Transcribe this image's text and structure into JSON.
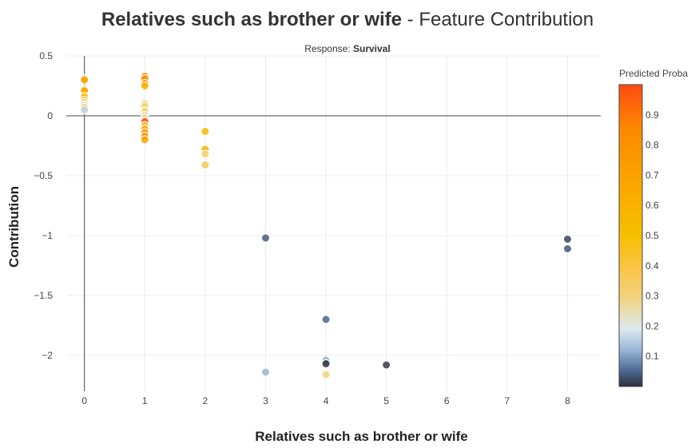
{
  "title": {
    "feature": "Relatives such as brother or wife",
    "separator": " - ",
    "suffix": "Feature Contribution"
  },
  "subtitle": {
    "prefix": "Response: ",
    "response": "Survival"
  },
  "chart_data": {
    "type": "scatter",
    "title": "Relatives such as brother or wife - Feature Contribution",
    "subtitle": "Response: Survival",
    "xlabel": "Relatives such as brother or wife",
    "ylabel": "Contribution",
    "xlim": [
      -0.3,
      8.55
    ],
    "ylim": [
      -2.3,
      0.5
    ],
    "xticks": [
      0,
      1,
      2,
      3,
      4,
      5,
      6,
      7,
      8
    ],
    "yticks": [
      0.5,
      0,
      -0.5,
      -1,
      -1.5,
      -2
    ],
    "ytick_labels": [
      "0.5",
      "0",
      "−0.5",
      "−1",
      "−1.5",
      "−2"
    ],
    "grid": true,
    "zero_line": true,
    "color_by": "Predicted Proba",
    "colorbar": {
      "title": "Predicted Proba",
      "range": [
        0,
        1
      ],
      "ticks": [
        0.1,
        0.2,
        0.3,
        0.4,
        0.5,
        0.6,
        0.7,
        0.8,
        0.9
      ],
      "stops": [
        {
          "v": 0.0,
          "color": "#2b2f38"
        },
        {
          "v": 0.05,
          "color": "#4a6591"
        },
        {
          "v": 0.12,
          "color": "#98b6d6"
        },
        {
          "v": 0.19,
          "color": "#dde9ee"
        },
        {
          "v": 0.3,
          "color": "#f2d27a"
        },
        {
          "v": 0.4,
          "color": "#fbc441"
        },
        {
          "v": 0.5,
          "color": "#f5c000"
        },
        {
          "v": 0.65,
          "color": "#fba900"
        },
        {
          "v": 0.85,
          "color": "#fd8a00"
        },
        {
          "v": 1.0,
          "color": "#ff4a10"
        }
      ]
    },
    "points": [
      {
        "x": 0,
        "y": 0.31,
        "p": 0.75
      },
      {
        "x": 0,
        "y": 0.3,
        "p": 0.68
      },
      {
        "x": 0,
        "y": 0.22,
        "p": 0.7
      },
      {
        "x": 0,
        "y": 0.21,
        "p": 0.62
      },
      {
        "x": 0,
        "y": 0.16,
        "p": 0.55
      },
      {
        "x": 0,
        "y": 0.13,
        "p": 0.4
      },
      {
        "x": 0,
        "y": 0.11,
        "p": 0.3
      },
      {
        "x": 0,
        "y": 0.09,
        "p": 0.2
      },
      {
        "x": 0,
        "y": 0.07,
        "p": 0.35
      },
      {
        "x": 0,
        "y": 0.05,
        "p": 0.16
      },
      {
        "x": 1,
        "y": 0.33,
        "p": 0.85
      },
      {
        "x": 1,
        "y": 0.31,
        "p": 0.8
      },
      {
        "x": 1,
        "y": 0.27,
        "p": 0.78
      },
      {
        "x": 1,
        "y": 0.25,
        "p": 0.6
      },
      {
        "x": 1,
        "y": 0.1,
        "p": 0.33
      },
      {
        "x": 1,
        "y": 0.08,
        "p": 0.3
      },
      {
        "x": 1,
        "y": 0.04,
        "p": 0.7
      },
      {
        "x": 1,
        "y": 0.03,
        "p": 0.5
      },
      {
        "x": 1,
        "y": 0.01,
        "p": 0.2
      },
      {
        "x": 1,
        "y": -0.02,
        "p": 0.35
      },
      {
        "x": 1,
        "y": -0.04,
        "p": 0.95
      },
      {
        "x": 1,
        "y": -0.05,
        "p": 0.98
      },
      {
        "x": 1,
        "y": -0.08,
        "p": 0.4
      },
      {
        "x": 1,
        "y": -0.11,
        "p": 0.65
      },
      {
        "x": 1,
        "y": -0.14,
        "p": 0.72
      },
      {
        "x": 1,
        "y": -0.17,
        "p": 0.8
      },
      {
        "x": 1,
        "y": -0.2,
        "p": 0.7
      },
      {
        "x": 2,
        "y": -0.13,
        "p": 0.55
      },
      {
        "x": 2,
        "y": -0.28,
        "p": 0.6
      },
      {
        "x": 2,
        "y": -0.32,
        "p": 0.32
      },
      {
        "x": 2,
        "y": -0.41,
        "p": 0.36
      },
      {
        "x": 3,
        "y": -1.02,
        "p": 0.04
      },
      {
        "x": 3,
        "y": -2.14,
        "p": 0.12
      },
      {
        "x": 4,
        "y": -1.7,
        "p": 0.05
      },
      {
        "x": 4,
        "y": -2.04,
        "p": 0.12
      },
      {
        "x": 4,
        "y": -2.07,
        "p": 0.0
      },
      {
        "x": 4,
        "y": -2.16,
        "p": 0.3
      },
      {
        "x": 5,
        "y": -2.08,
        "p": 0.01
      },
      {
        "x": 8,
        "y": -1.03,
        "p": 0.02
      },
      {
        "x": 8,
        "y": -1.11,
        "p": 0.04
      }
    ]
  }
}
